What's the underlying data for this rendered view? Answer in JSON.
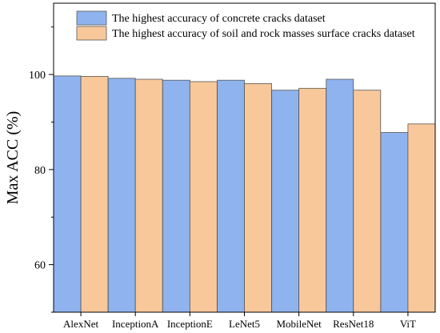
{
  "chart_data": {
    "type": "bar",
    "title": "",
    "xlabel": "",
    "ylabel": "Max ACC (%)",
    "ylim": [
      50,
      115
    ],
    "yticks": [
      60,
      80,
      100
    ],
    "grid": false,
    "legend_position": "top",
    "categories": [
      "AlexNet",
      "InceptionA",
      "InceptionE",
      "LeNet5",
      "MobileNet",
      "ResNet18",
      "ViT"
    ],
    "series": [
      {
        "name": "The highest accuracy of concrete cracks dataset",
        "color": "#8fb3ee",
        "values": [
          99.7,
          99.2,
          98.8,
          98.8,
          96.7,
          99.0,
          87.8
        ]
      },
      {
        "name": "The highest accuracy of soil and rock masses surface cracks dataset",
        "color": "#f8c89b",
        "values": [
          99.6,
          99.0,
          98.5,
          98.1,
          97.1,
          96.7,
          89.6
        ]
      }
    ]
  }
}
